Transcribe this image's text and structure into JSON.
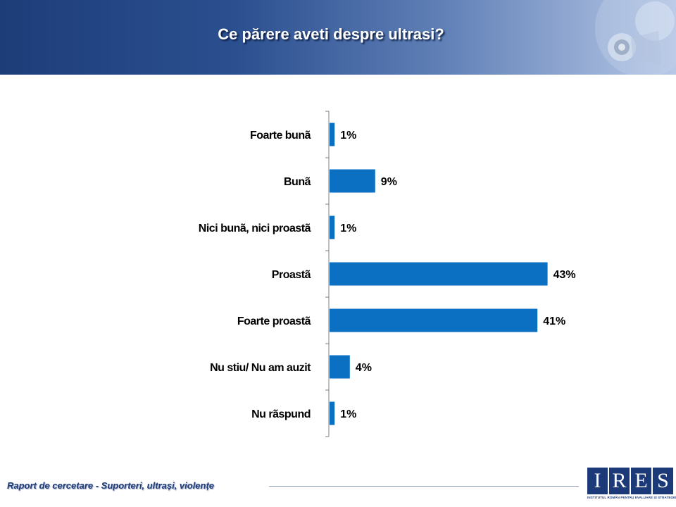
{
  "header": {
    "title": "Ce părere aveti despre ultrasi?"
  },
  "chart_data": {
    "type": "bar",
    "orientation": "horizontal",
    "title": "Ce părere aveti despre ultrasi?",
    "categories": [
      "Foarte bunã",
      "Bunã",
      "Nici bunã, nici proastã",
      "Proastã",
      "Foarte proastã",
      "Nu stiu/ Nu am auzit",
      "Nu rãspund"
    ],
    "values": [
      1,
      9,
      1,
      43,
      41,
      4,
      1
    ],
    "value_labels": [
      "1%",
      "9%",
      "1%",
      "43%",
      "41%",
      "4%",
      "1%"
    ],
    "xlim": [
      0,
      45
    ],
    "bar_color": "#0b6fc2",
    "grid": false
  },
  "footer": {
    "report_text": "Raport de cercetare - Suporteri, ultrași, violențe"
  },
  "logo": {
    "letters": [
      "I",
      "R",
      "E",
      "S"
    ],
    "subtitle": "INSTITUTUL ROMÂN PENTRU EVALUARE ȘI STRATEGIE"
  },
  "colors": {
    "header_dark": "#1d3d79",
    "brand_blue": "#1d3a78"
  }
}
